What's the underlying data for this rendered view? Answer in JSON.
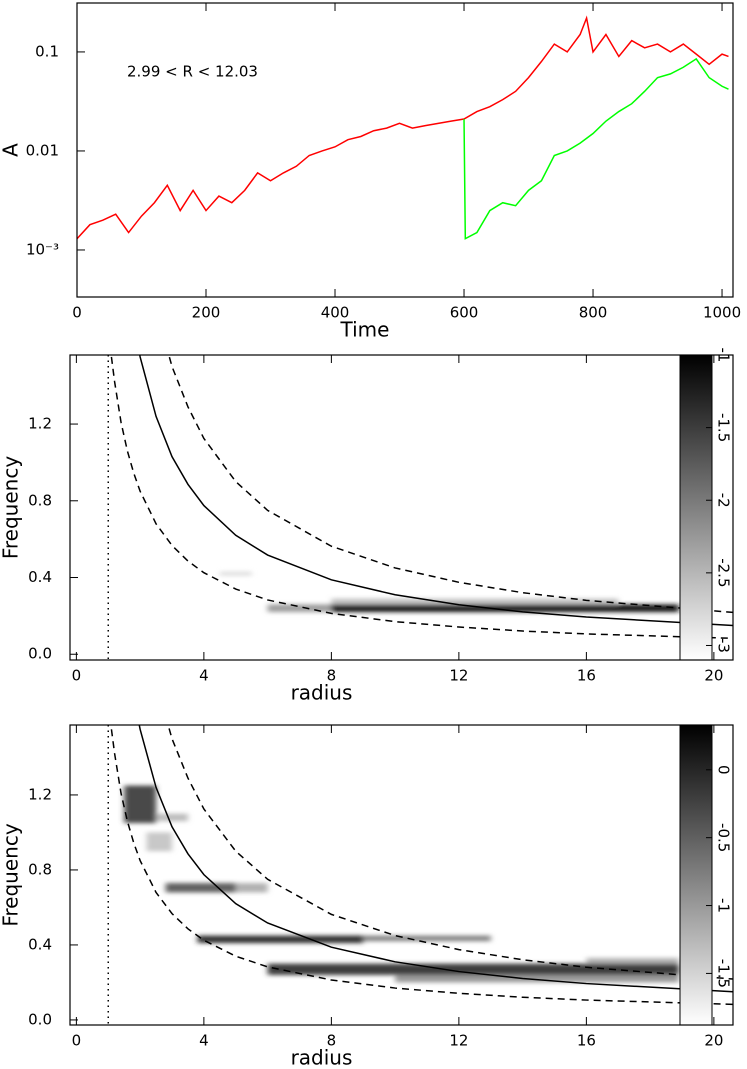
{
  "chart_data": [
    {
      "type": "line",
      "ylog": true,
      "xlabel": "Time",
      "ylabel": "A",
      "annotation": "2.99 < R < 12.03",
      "xlim": [
        0,
        1017
      ],
      "ylim": [
        0.000335,
        0.312
      ],
      "xticks": [
        0,
        200,
        400,
        600,
        800,
        1000
      ],
      "yticks": [
        0.1,
        0.01,
        {
          "value": 0.001,
          "label": "10⁻³"
        }
      ],
      "series": [
        {
          "color": "#ff0000",
          "x": [
            0,
            20,
            40,
            60,
            80,
            100,
            120,
            140,
            160,
            180,
            200,
            220,
            240,
            260,
            280,
            300,
            320,
            340,
            360,
            380,
            400,
            420,
            440,
            460,
            480,
            500,
            520,
            540,
            560,
            580,
            600,
            620,
            640,
            660,
            680,
            700,
            720,
            740,
            760,
            780,
            790,
            800,
            820,
            840,
            860,
            880,
            900,
            920,
            940,
            960,
            980,
            1000,
            1010
          ],
          "values": [
            0.0013,
            0.0018,
            0.002,
            0.0023,
            0.0015,
            0.0022,
            0.003,
            0.0045,
            0.0025,
            0.004,
            0.0025,
            0.0035,
            0.003,
            0.004,
            0.006,
            0.005,
            0.006,
            0.007,
            0.009,
            0.01,
            0.011,
            0.013,
            0.014,
            0.016,
            0.017,
            0.019,
            0.017,
            0.018,
            0.019,
            0.02,
            0.021,
            0.025,
            0.028,
            0.033,
            0.04,
            0.055,
            0.08,
            0.12,
            0.1,
            0.15,
            0.22,
            0.1,
            0.15,
            0.09,
            0.13,
            0.11,
            0.12,
            0.1,
            0.12,
            0.095,
            0.075,
            0.095,
            0.09
          ]
        },
        {
          "color": "#00ff00",
          "x": [
            600,
            602,
            620,
            640,
            660,
            680,
            700,
            720,
            740,
            760,
            780,
            800,
            820,
            840,
            860,
            880,
            900,
            920,
            940,
            960,
            980,
            1000,
            1010
          ],
          "values": [
            0.021,
            0.0013,
            0.0015,
            0.0025,
            0.003,
            0.0028,
            0.004,
            0.005,
            0.009,
            0.01,
            0.012,
            0.015,
            0.02,
            0.025,
            0.03,
            0.04,
            0.055,
            0.06,
            0.07,
            0.085,
            0.055,
            0.045,
            0.042
          ]
        }
      ]
    },
    {
      "type": "heatmap",
      "xlabel": "radius",
      "ylabel": "Frequency",
      "xlim": [
        -0.2,
        20.6
      ],
      "ylim": [
        -0.03,
        1.56
      ],
      "xticks": [
        0,
        4,
        8,
        12,
        16,
        20
      ],
      "yticks": [
        {
          "value": 0,
          "label": "0.0"
        },
        0.4,
        0.8,
        1.2
      ],
      "cells": [
        {
          "r": [
            6,
            8
          ],
          "f": [
            0.22,
            0.26
          ],
          "v": -2.3
        },
        {
          "r": [
            8,
            18.9
          ],
          "f": [
            0.22,
            0.26
          ],
          "v": -1.2
        },
        {
          "r": [
            8,
            17
          ],
          "f": [
            0.26,
            0.29
          ],
          "v": -2.6
        },
        {
          "r": [
            4.5,
            5.5
          ],
          "f": [
            0.41,
            0.43
          ],
          "v": -2.8
        }
      ],
      "curves": [
        {
          "style": "solid",
          "x": [
            1.1,
            1.2,
            1.4,
            1.6,
            1.8,
            2,
            2.5,
            3,
            3.5,
            4,
            5,
            6,
            8,
            10,
            12,
            14,
            16,
            20.6
          ],
          "values": [
            2.82,
            2.58,
            2.21,
            1.94,
            1.72,
            1.55,
            1.24,
            1.03,
            0.886,
            0.775,
            0.62,
            0.517,
            0.388,
            0.31,
            0.258,
            0.221,
            0.194,
            0.15
          ]
        },
        {
          "style": "dashed",
          "x": [
            1.1,
            1.2,
            1.4,
            1.6,
            1.8,
            2,
            2.5,
            3,
            3.5,
            4,
            5,
            6,
            8,
            10,
            12,
            14,
            16,
            20.6
          ],
          "values": [
            4.09,
            3.75,
            3.21,
            2.81,
            2.5,
            2.25,
            1.8,
            1.5,
            1.29,
            1.125,
            0.9,
            0.75,
            0.563,
            0.45,
            0.375,
            0.321,
            0.281,
            0.218
          ]
        },
        {
          "style": "dashed",
          "x": [
            1.1,
            1.2,
            1.4,
            1.6,
            1.8,
            2,
            2.5,
            3,
            3.5,
            4,
            5,
            6,
            8,
            10,
            12,
            14,
            16,
            20.6
          ],
          "values": [
            1.55,
            1.42,
            1.21,
            1.06,
            0.944,
            0.85,
            0.68,
            0.567,
            0.486,
            0.425,
            0.34,
            0.283,
            0.213,
            0.17,
            0.142,
            0.121,
            0.106,
            0.083
          ]
        }
      ],
      "vlines": [
        {
          "x": 1,
          "style": "dotted"
        }
      ],
      "colorbar": {
        "clim": [
          -3.1,
          -1
        ],
        "ticks": [
          -1,
          -1.5,
          -2,
          -2.5,
          -3
        ]
      }
    },
    {
      "type": "heatmap",
      "xlabel": "radius",
      "ylabel": "Frequency",
      "xlim": [
        -0.2,
        20.6
      ],
      "ylim": [
        -0.027,
        1.573
      ],
      "xticks": [
        0,
        4,
        8,
        12,
        16,
        20
      ],
      "yticks": [
        {
          "value": 0,
          "label": "0.0"
        },
        0.4,
        0.8,
        1.2
      ],
      "cells": [
        {
          "r": [
            1.5,
            2.5
          ],
          "f": [
            1.05,
            1.25
          ],
          "v": -0.3
        },
        {
          "r": [
            2.5,
            3.5
          ],
          "f": [
            1.06,
            1.1
          ],
          "v": -1.3
        },
        {
          "r": [
            2.2,
            3
          ],
          "f": [
            0.9,
            1.0
          ],
          "v": -1.4
        },
        {
          "r": [
            2.8,
            5
          ],
          "f": [
            0.68,
            0.73
          ],
          "v": -0.5
        },
        {
          "r": [
            5,
            6
          ],
          "f": [
            0.68,
            0.73
          ],
          "v": -1.2
        },
        {
          "r": [
            3.8,
            9
          ],
          "f": [
            0.41,
            0.45
          ],
          "v": -0.1
        },
        {
          "r": [
            9,
            13
          ],
          "f": [
            0.42,
            0.45
          ],
          "v": -0.8
        },
        {
          "r": [
            6,
            18.9
          ],
          "f": [
            0.24,
            0.3
          ],
          "v": -0.2
        },
        {
          "r": [
            10,
            18.9
          ],
          "f": [
            0.2,
            0.24
          ],
          "v": -1
        },
        {
          "r": [
            16,
            18.9
          ],
          "f": [
            0.3,
            0.33
          ],
          "v": -1.2
        }
      ],
      "curves": [
        {
          "style": "solid",
          "x": [
            1.1,
            1.2,
            1.4,
            1.6,
            1.8,
            2,
            2.5,
            3,
            3.5,
            4,
            5,
            6,
            8,
            10,
            12,
            14,
            16,
            20.6
          ],
          "values": [
            2.82,
            2.58,
            2.21,
            1.94,
            1.72,
            1.55,
            1.24,
            1.03,
            0.886,
            0.775,
            0.62,
            0.517,
            0.388,
            0.31,
            0.258,
            0.221,
            0.194,
            0.15
          ]
        },
        {
          "style": "dashed",
          "x": [
            1.1,
            1.2,
            1.4,
            1.6,
            1.8,
            2,
            2.5,
            3,
            3.5,
            4,
            5,
            6,
            8,
            10,
            12,
            14,
            16,
            20.6
          ],
          "values": [
            4.09,
            3.75,
            3.21,
            2.81,
            2.5,
            2.25,
            1.8,
            1.5,
            1.29,
            1.125,
            0.9,
            0.75,
            0.563,
            0.45,
            0.375,
            0.321,
            0.281,
            0.218
          ]
        },
        {
          "style": "dashed",
          "x": [
            1.1,
            1.2,
            1.4,
            1.6,
            1.8,
            2,
            2.5,
            3,
            3.5,
            4,
            5,
            6,
            8,
            10,
            12,
            14,
            16,
            20.6
          ],
          "values": [
            1.55,
            1.42,
            1.21,
            1.06,
            0.944,
            0.85,
            0.68,
            0.567,
            0.486,
            0.425,
            0.34,
            0.283,
            0.213,
            0.17,
            0.142,
            0.121,
            0.106,
            0.083
          ]
        }
      ],
      "vlines": [
        {
          "x": 1,
          "style": "dotted"
        }
      ],
      "colorbar": {
        "clim": [
          -1.88,
          0.33
        ],
        "ticks": [
          0,
          -0.5,
          -1,
          -1.5
        ]
      }
    }
  ]
}
